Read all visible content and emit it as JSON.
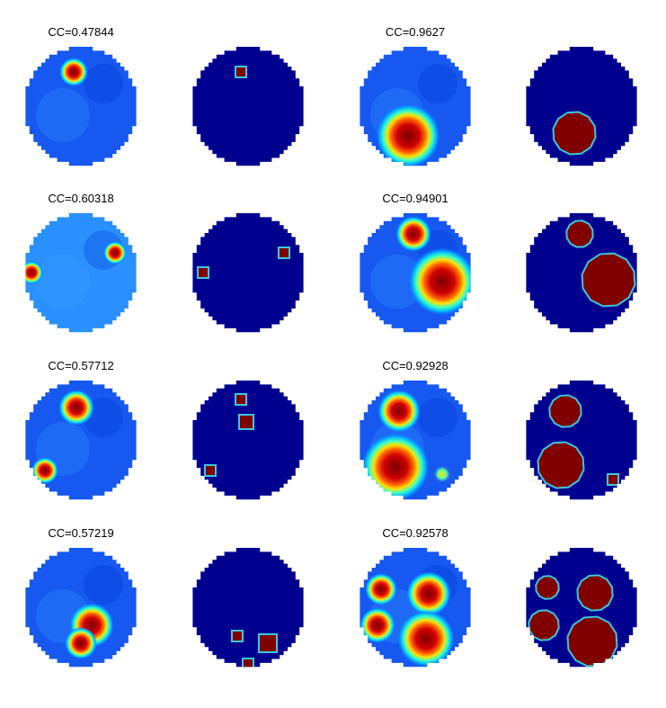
{
  "panels": [
    {
      "title": "CC=0.47844"
    },
    {
      "title": "CC=0.9627"
    },
    {
      "title": "CC=0.60318"
    },
    {
      "title": "CC=0.94901"
    },
    {
      "title": "CC=0.57712"
    },
    {
      "title": "CC=0.92928"
    },
    {
      "title": "CC=0.57219"
    },
    {
      "title": "CC=0.92578"
    }
  ]
}
